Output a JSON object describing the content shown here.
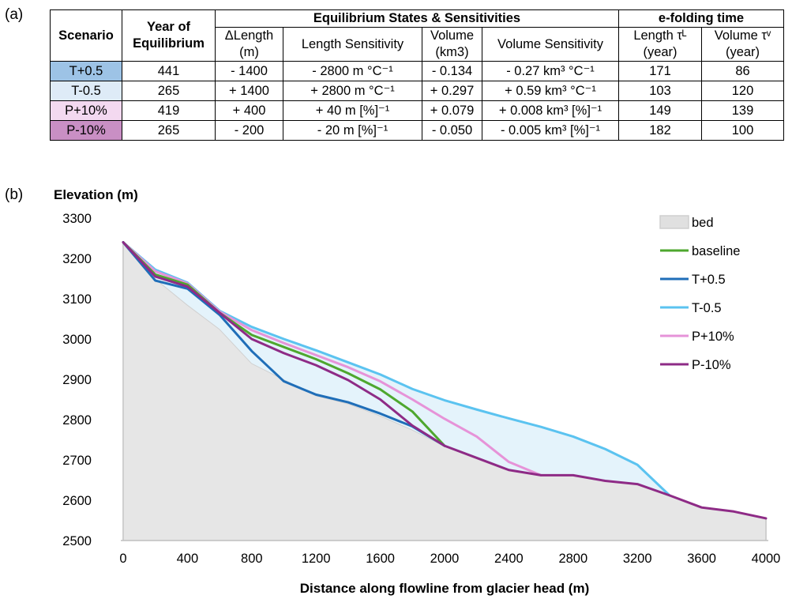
{
  "panel_labels": {
    "a": "(a)",
    "b": "(b)"
  },
  "table": {
    "headers": {
      "scenario": "Scenario",
      "year_line1": "Year of",
      "year_line2": "Equilibrium",
      "group_equilibrium": "Equilibrium States & Sensitivities",
      "group_efolding": "e-folding time",
      "dlength_line1": "ΔLength",
      "dlength_line2": "(m)",
      "length_sens": "Length Sensitivity",
      "volume_line1": "Volume",
      "volume_line2": "(km3)",
      "volume_sens": "Volume Sensitivity",
      "tau_l_line1": "Length τᴸ",
      "tau_l_line2": "(year)",
      "tau_v_line1": "Volume τᵛ",
      "tau_v_line2": "(year)"
    },
    "rows": [
      {
        "scenario": "T+0.5",
        "color": "#9dc3e6",
        "year": "441",
        "dlength": "- 1400",
        "length_sens": "- 2800 m °C⁻¹",
        "volume": "- 0.134",
        "volume_sens": "- 0.27 km³ °C⁻¹",
        "tau_l": "171",
        "tau_v": "86"
      },
      {
        "scenario": "T-0.5",
        "color": "#deebf7",
        "year": "265",
        "dlength": "+ 1400",
        "length_sens": "+ 2800 m °C⁻¹",
        "volume": "+ 0.297",
        "volume_sens": "+ 0.59 km³ °C⁻¹",
        "tau_l": "103",
        "tau_v": "120"
      },
      {
        "scenario": "P+10%",
        "color": "#f3d9f0",
        "year": "419",
        "dlength": "+ 400",
        "length_sens": "+ 40 m [%]⁻¹",
        "volume": "+ 0.079",
        "volume_sens": "+ 0.008 km³ [%]⁻¹",
        "tau_l": "149",
        "tau_v": "139"
      },
      {
        "scenario": "P-10%",
        "color": "#c98fc4",
        "year": "265",
        "dlength": "- 200",
        "length_sens": "- 20 m [%]⁻¹",
        "volume": "- 0.050",
        "volume_sens": "- 0.005 km³ [%]⁻¹",
        "tau_l": "182",
        "tau_v": "100"
      }
    ]
  },
  "chart_data": {
    "type": "area",
    "title": "",
    "ylabel": "Elevation (m)",
    "xlabel": "Distance along flowline from glacier head (m)",
    "xlim": [
      0,
      4000
    ],
    "ylim": [
      2500,
      3300
    ],
    "xticks": [
      0,
      400,
      800,
      1200,
      1600,
      2000,
      2400,
      2800,
      3200,
      3600,
      4000
    ],
    "yticks": [
      2500,
      2600,
      2700,
      2800,
      2900,
      3000,
      3100,
      3200,
      3300
    ],
    "grid": false,
    "legend_position": "right",
    "x": [
      0,
      200,
      400,
      600,
      800,
      1000,
      1200,
      1400,
      1600,
      1800,
      2000,
      2200,
      2400,
      2600,
      2800,
      3000,
      3200,
      3400,
      3600,
      3800,
      4000
    ],
    "series": [
      {
        "name": "bed",
        "color": "#d9d9d9",
        "style": "area",
        "values": [
          3240,
          3150,
          3085,
          3025,
          2940,
          2900,
          2860,
          2840,
          2810,
          2775,
          2735,
          2705,
          2675,
          2662,
          2662,
          2648,
          2640,
          2612,
          2582,
          2572,
          2555
        ]
      },
      {
        "name": "baseline",
        "color": "#4ea72e",
        "style": "line",
        "values": [
          3240,
          3160,
          3135,
          3065,
          3010,
          2980,
          2950,
          2915,
          2875,
          2820,
          2735,
          null,
          null,
          null,
          null,
          null,
          null,
          null,
          null,
          null,
          null
        ]
      },
      {
        "name": "T+0.5",
        "color": "#1f6eb8",
        "style": "line",
        "values": [
          3240,
          3145,
          3125,
          3060,
          2970,
          2895,
          2862,
          2843,
          2815,
          2783,
          2735,
          null,
          null,
          null,
          null,
          null,
          null,
          null,
          null,
          null,
          null
        ]
      },
      {
        "name": "T-0.5",
        "color": "#5bc3f0",
        "style": "line",
        "values": [
          3240,
          3172,
          3140,
          3070,
          3030,
          3000,
          2972,
          2942,
          2912,
          2876,
          2848,
          2825,
          2803,
          2782,
          2758,
          2727,
          2688,
          2612,
          null,
          null,
          null
        ]
      },
      {
        "name": "P+10%",
        "color": "#e693d8",
        "style": "line",
        "values": [
          3240,
          3168,
          3138,
          3068,
          3022,
          2990,
          2960,
          2930,
          2895,
          2850,
          2802,
          2758,
          2695,
          2662,
          null,
          null,
          null,
          null,
          null,
          null,
          null
        ]
      },
      {
        "name": "P-10%",
        "color": "#8e2b86",
        "style": "line",
        "values": [
          3240,
          3155,
          3130,
          3065,
          3000,
          2965,
          2935,
          2898,
          2850,
          2785,
          2735,
          2705,
          2675,
          2662,
          2662,
          2648,
          2640,
          2612,
          2582,
          2572,
          2555
        ]
      }
    ]
  }
}
